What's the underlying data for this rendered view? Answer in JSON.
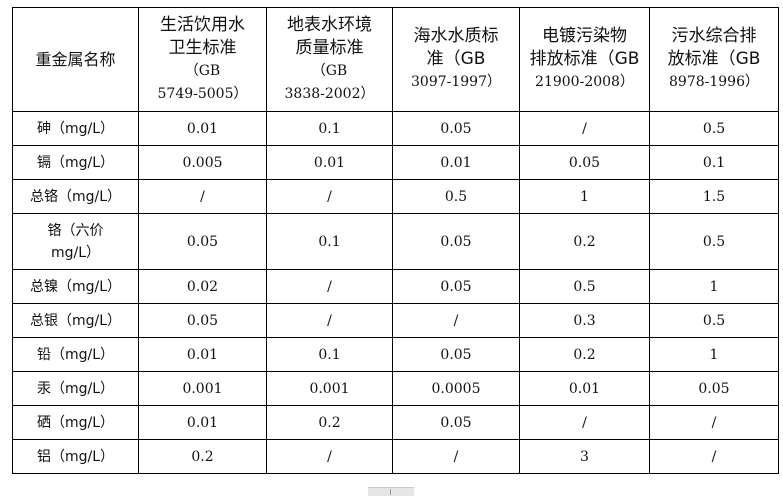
{
  "table": {
    "header": {
      "name_col": "重金属名称",
      "columns": [
        {
          "lines": [
            "生活饮用水",
            "卫生标准"
          ],
          "code_lines": [
            "（GB",
            "5749-5005）"
          ]
        },
        {
          "lines": [
            "地表水环境",
            "质量标准"
          ],
          "code_lines": [
            "（GB",
            "3838-2002）"
          ]
        },
        {
          "lines": [
            "海水水质标",
            "准（GB"
          ],
          "code_lines": [
            "3097-1997）"
          ]
        },
        {
          "lines": [
            "电镀污染物",
            "排放标准（GB"
          ],
          "code_lines": [
            "21900-2008）"
          ]
        },
        {
          "lines": [
            "污水综合排",
            "放标准（GB"
          ],
          "code_lines": [
            "8978-1996）"
          ]
        }
      ]
    },
    "rows": [
      {
        "name": "砷（mg/L）",
        "values": [
          "0.01",
          "0.1",
          "0.05",
          "/",
          "0.5"
        ]
      },
      {
        "name": "镉（mg/L）",
        "values": [
          "0.005",
          "0.01",
          "0.01",
          "0.05",
          "0.1"
        ]
      },
      {
        "name": "总铬（mg/L）",
        "values": [
          "/",
          "/",
          "0.5",
          "1",
          "1.5"
        ]
      },
      {
        "name_lines": [
          "铬（六价",
          "mg/L）"
        ],
        "values": [
          "0.05",
          "0.1",
          "0.05",
          "0.2",
          "0.5"
        ]
      },
      {
        "name": "总镍（mg/L）",
        "values": [
          "0.02",
          "/",
          "0.05",
          "0.5",
          "1"
        ]
      },
      {
        "name": "总银（mg/L）",
        "values": [
          "0.05",
          "/",
          "/",
          "0.3",
          "0.5"
        ]
      },
      {
        "name": "铅（mg/L）",
        "values": [
          "0.01",
          "0.1",
          "0.05",
          "0.2",
          "1"
        ]
      },
      {
        "name": "汞（mg/L）",
        "values": [
          "0.001",
          "0.001",
          "0.0005",
          "0.01",
          "0.05"
        ]
      },
      {
        "name": "硒（mg/L）",
        "values": [
          "0.01",
          "0.2",
          "0.05",
          "/",
          "/"
        ]
      },
      {
        "name": "铝（mg/L）",
        "values": [
          "0.2",
          "/",
          "/",
          "3",
          "/"
        ]
      }
    ]
  }
}
